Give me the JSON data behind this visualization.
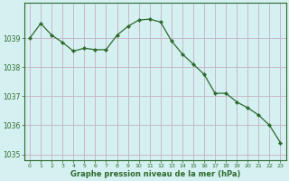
{
  "x": [
    0,
    1,
    2,
    3,
    4,
    5,
    6,
    7,
    8,
    9,
    10,
    11,
    12,
    13,
    14,
    15,
    16,
    17,
    18,
    19,
    20,
    21,
    22,
    23
  ],
  "y": [
    1039.0,
    1039.5,
    1039.1,
    1038.85,
    1038.55,
    1038.65,
    1038.6,
    1038.6,
    1039.1,
    1039.4,
    1039.62,
    1039.65,
    1039.55,
    1038.9,
    1038.45,
    1038.1,
    1037.75,
    1037.1,
    1037.1,
    1036.8,
    1036.6,
    1036.35,
    1036.0,
    1035.4
  ],
  "line_color": "#2d6a2d",
  "marker_color": "#2d6a2d",
  "bg_color": "#d4f0f0",
  "grid_color": "#c8b8c8",
  "xlabel": "Graphe pression niveau de la mer (hPa)",
  "xlabel_color": "#2d6a2d",
  "tick_color": "#2d6a2d",
  "border_color": "#2d6a2d",
  "ylim": [
    1034.8,
    1040.2
  ],
  "yticks": [
    1035,
    1036,
    1037,
    1038,
    1039
  ],
  "xticks": [
    0,
    1,
    2,
    3,
    4,
    5,
    6,
    7,
    8,
    9,
    10,
    11,
    12,
    13,
    14,
    15,
    16,
    17,
    18,
    19,
    20,
    21,
    22,
    23
  ],
  "xtick_labels": [
    "0",
    "1",
    "2",
    "3",
    "4",
    "5",
    "6",
    "7",
    "8",
    "9",
    "10",
    "11",
    "12",
    "13",
    "14",
    "15",
    "16",
    "17",
    "18",
    "19",
    "20",
    "21",
    "22",
    "23"
  ]
}
